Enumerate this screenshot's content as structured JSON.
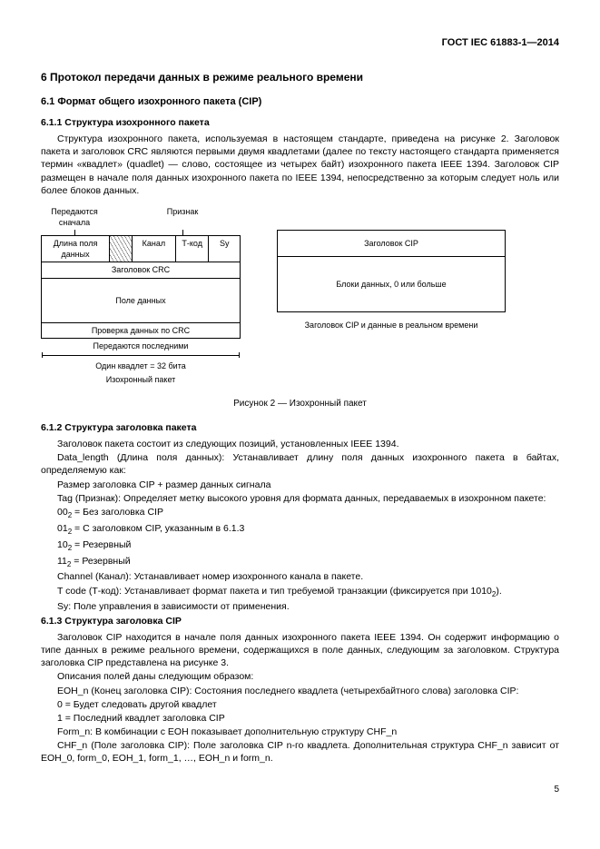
{
  "doc_header": "ГОСТ IEC 61883-1—2014",
  "h_section": "6  Протокол передачи данных в режиме реального времени",
  "h_61": "6.1  Формат общего изохронного пакета (CIP)",
  "h_611": "6.1.1  Структура изохронного пакета",
  "p_611": "Структура изохронного пакета, используемая в настоящем стандарте, приведена на рисунке 2. Заголовок пакета и заголовок CRC являются первыми двумя квадлетами (далее по тексту настоящего стандарта применяется термин «квадлет» (quadlet) — слово, состоящее из четырех байт) изохронного пакета IEEE 1394. Заголовок CIP размещен в начале поля данных изохронного пакета по IEEE 1394, непосредственно за которым следует ноль или более блоков данных.",
  "fig": {
    "top_left": "Передаются сначала",
    "top_right": "Признак",
    "r1_dlen": "Длина поля данных",
    "r1_chan": "Канал",
    "r1_tcode": "Т-код",
    "r1_sy": "Sy",
    "r2": "Заголовок CRC",
    "r3": "Поле данных",
    "r4": "Проверка данных по CRC",
    "below": "Передаются последними",
    "bits": "Один квадлет = 32 бита",
    "iso": "Изохронный пакет",
    "t2_head": "Заголовок CIP",
    "t2_body": "Блоки данных, 0 или больше",
    "right_caption": "Заголовок CIP и данные в реальном времени",
    "caption": "Рисунок  2  —  Изохронный пакет"
  },
  "h_612": "6.1.2  Структура заголовка пакета",
  "p_612a": "Заголовок пакета состоит из следующих позиций, установленных IEEE 1394.",
  "p_612b": "Data_length (Длина поля данных): Устанавливает длину поля данных изохронного пакета в байтах, определяемую как:",
  "p_612c": "Размер заголовка CIP + размер данных сигнала",
  "p_612d": "Tag (Признак): Определяет метку высокого уровня для формата данных, передаваемых в изохронном пакете:",
  "p_612e0": "00",
  "p_612e1": " = Без заголовка CIP",
  "p_612f0": "01",
  "p_612f1": " = С заголовком CIP, указанным в 6.1.3",
  "p_612g0": "10",
  "p_612g1": " = Резервный",
  "p_612h0": "11",
  "p_612h1": " = Резервный",
  "p_612i": "Channel (Канал): Устанавливает номер изохронного канала в пакете.",
  "p_612j_a": "T code (Т-код): Устанавливает формат пакета и тип требуемой транзакции (фиксируется при 1010",
  "p_612j_b": ").",
  "p_612k": "Sy: Поле управления в зависимости от применения.",
  "h_613": "6.1.3  Структура заголовка CIP",
  "p_613a": "Заголовок CIP находится в начале поля данных изохронного пакета IEEE 1394. Он содержит информацию о типе данных в режиме реального времени, содержащихся в поле данных, следующим за заголовком. Структура заголовка CIP представлена на рисунке 3.",
  "p_613b": "Описания полей даны следующим образом:",
  "p_613c": "EOH_n (Конец заголовка CIP): Состояния последнего квадлета (четырехбайтного слова) заголовка CIP:",
  "p_613d": "0 = Будет следовать другой квадлет",
  "p_613e": "1 = Последний квадлет заголовка CIP",
  "p_613f": "Form_n: В комбинации с EOH показывает дополнительную структуру CHF_n",
  "p_613g": "CHF_n (Поле заголовка CIP): Поле заголовка CIP n-го квадлета. Дополнительная структура CHF_n зависит от EOH_0, form_0, EOH_1, form_1, …, EOH_n и form_n.",
  "sub2": "2",
  "page_number": "5"
}
